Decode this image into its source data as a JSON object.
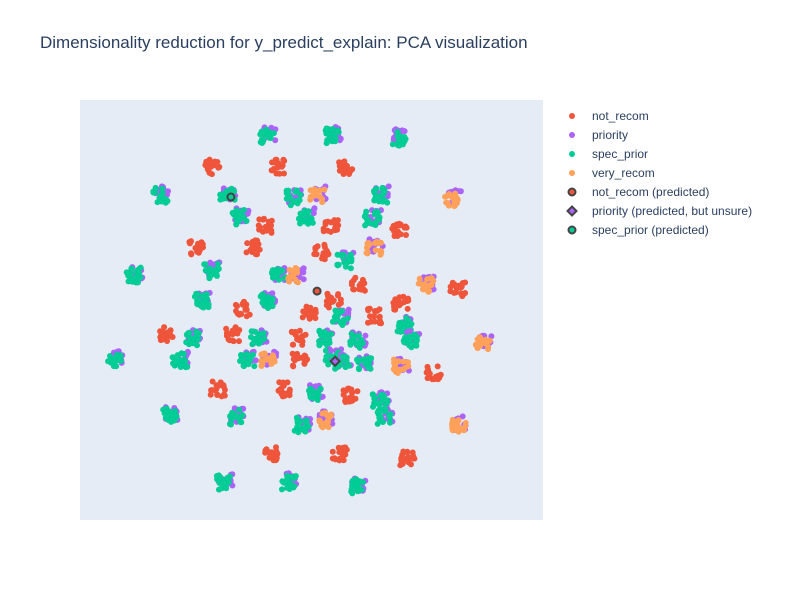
{
  "chart_data": {
    "type": "scatter",
    "title": "Dimensionality reduction for y_predict_explain: PCA visualization",
    "xlabel": "",
    "ylabel": "",
    "xlim": [
      0,
      100
    ],
    "ylim": [
      0,
      100
    ],
    "grid": false,
    "legend_position": "right",
    "axis_ticks_visible": false,
    "colors": {
      "not_recom": "#EF553B",
      "priority": "#AB63FA",
      "spec_prior": "#00CC96",
      "very_recom": "#FFA15A",
      "predicted_marker_outline": "#444444"
    },
    "clusters": [
      {
        "x": 40.4,
        "y": 91.5,
        "mix": [
          "priority",
          "spec_prior"
        ]
      },
      {
        "x": 54.6,
        "y": 91.5,
        "mix": [
          "priority",
          "spec_prior"
        ]
      },
      {
        "x": 68.8,
        "y": 90.9,
        "mix": [
          "priority",
          "spec_prior"
        ]
      },
      {
        "x": 28.6,
        "y": 84.1,
        "mix": [
          "not_recom"
        ]
      },
      {
        "x": 42.8,
        "y": 84.1,
        "mix": [
          "not_recom"
        ]
      },
      {
        "x": 57.3,
        "y": 83.9,
        "mix": [
          "not_recom"
        ]
      },
      {
        "x": 17.4,
        "y": 77.3,
        "mix": [
          "priority",
          "spec_prior"
        ]
      },
      {
        "x": 31.9,
        "y": 77.3,
        "mix": [
          "priority",
          "spec_prior"
        ]
      },
      {
        "x": 46.2,
        "y": 76.7,
        "mix": [
          "priority",
          "spec_prior"
        ]
      },
      {
        "x": 51.2,
        "y": 77.3,
        "mix": [
          "priority",
          "very_recom"
        ]
      },
      {
        "x": 64.8,
        "y": 77.3,
        "mix": [
          "priority",
          "spec_prior"
        ]
      },
      {
        "x": 80.4,
        "y": 76.4,
        "mix": [
          "priority",
          "very_recom"
        ]
      },
      {
        "x": 34.5,
        "y": 72.1,
        "mix": [
          "priority",
          "spec_prior"
        ]
      },
      {
        "x": 48.8,
        "y": 72.1,
        "mix": [
          "priority",
          "spec_prior"
        ]
      },
      {
        "x": 63.1,
        "y": 71.7,
        "mix": [
          "priority",
          "spec_prior"
        ]
      },
      {
        "x": 40.0,
        "y": 70.0,
        "mix": [
          "not_recom"
        ]
      },
      {
        "x": 54.2,
        "y": 70.0,
        "mix": [
          "not_recom"
        ]
      },
      {
        "x": 69.0,
        "y": 68.8,
        "mix": [
          "not_recom"
        ]
      },
      {
        "x": 25.0,
        "y": 64.8,
        "mix": [
          "not_recom"
        ]
      },
      {
        "x": 37.3,
        "y": 64.8,
        "mix": [
          "not_recom"
        ]
      },
      {
        "x": 52.1,
        "y": 63.8,
        "mix": [
          "not_recom"
        ]
      },
      {
        "x": 63.5,
        "y": 64.8,
        "mix": [
          "priority",
          "very_recom"
        ]
      },
      {
        "x": 28.4,
        "y": 59.2,
        "mix": [
          "priority",
          "spec_prior"
        ]
      },
      {
        "x": 42.8,
        "y": 58.3,
        "mix": [
          "priority",
          "spec_prior"
        ]
      },
      {
        "x": 46.4,
        "y": 58.3,
        "mix": [
          "priority",
          "very_recom"
        ]
      },
      {
        "x": 57.1,
        "y": 61.6,
        "mix": [
          "priority",
          "spec_prior"
        ]
      },
      {
        "x": 60.2,
        "y": 55.9,
        "mix": [
          "not_recom"
        ]
      },
      {
        "x": 74.7,
        "y": 55.9,
        "mix": [
          "priority",
          "very_recom"
        ]
      },
      {
        "x": 11.7,
        "y": 58.3,
        "mix": [
          "priority",
          "spec_prior"
        ]
      },
      {
        "x": 26.3,
        "y": 52.1,
        "mix": [
          "priority",
          "spec_prior"
        ]
      },
      {
        "x": 40.6,
        "y": 52.1,
        "mix": [
          "priority",
          "spec_prior"
        ]
      },
      {
        "x": 54.9,
        "y": 52.1,
        "mix": [
          "not_recom"
        ]
      },
      {
        "x": 69.3,
        "y": 51.5,
        "mix": [
          "not_recom"
        ]
      },
      {
        "x": 81.6,
        "y": 54.8,
        "mix": [
          "not_recom"
        ]
      },
      {
        "x": 35.1,
        "y": 50.2,
        "mix": [
          "not_recom"
        ]
      },
      {
        "x": 49.4,
        "y": 49.1,
        "mix": [
          "not_recom"
        ]
      },
      {
        "x": 63.7,
        "y": 48.6,
        "mix": [
          "not_recom"
        ]
      },
      {
        "x": 56.2,
        "y": 48.1,
        "mix": [
          "priority",
          "spec_prior"
        ]
      },
      {
        "x": 70.0,
        "y": 46.4,
        "mix": [
          "priority",
          "spec_prior"
        ]
      },
      {
        "x": 18.7,
        "y": 44.3,
        "mix": [
          "not_recom"
        ]
      },
      {
        "x": 32.9,
        "y": 44.3,
        "mix": [
          "not_recom"
        ]
      },
      {
        "x": 47.3,
        "y": 43.3,
        "mix": [
          "not_recom"
        ]
      },
      {
        "x": 24.1,
        "y": 43.3,
        "mix": [
          "priority",
          "spec_prior"
        ]
      },
      {
        "x": 38.5,
        "y": 43.3,
        "mix": [
          "priority",
          "spec_prior"
        ]
      },
      {
        "x": 52.8,
        "y": 43.3,
        "mix": [
          "priority",
          "spec_prior"
        ]
      },
      {
        "x": 59.8,
        "y": 42.6,
        "mix": [
          "priority",
          "spec_prior"
        ]
      },
      {
        "x": 71.5,
        "y": 42.9,
        "mix": [
          "priority",
          "spec_prior"
        ]
      },
      {
        "x": 87.0,
        "y": 41.9,
        "mix": [
          "priority",
          "very_recom"
        ]
      },
      {
        "x": 7.6,
        "y": 38.3,
        "mix": [
          "priority",
          "spec_prior"
        ]
      },
      {
        "x": 21.6,
        "y": 38.1,
        "mix": [
          "priority",
          "spec_prior"
        ]
      },
      {
        "x": 36.1,
        "y": 38.1,
        "mix": [
          "priority",
          "spec_prior"
        ]
      },
      {
        "x": 40.6,
        "y": 38.1,
        "mix": [
          "priority",
          "very_recom"
        ]
      },
      {
        "x": 47.5,
        "y": 38.3,
        "mix": [
          "not_recom"
        ]
      },
      {
        "x": 54.6,
        "y": 38.6,
        "mix": [
          "priority",
          "spec_prior"
        ]
      },
      {
        "x": 56.7,
        "y": 37.4,
        "mix": [
          "priority",
          "spec_prior"
        ]
      },
      {
        "x": 61.3,
        "y": 37.1,
        "mix": [
          "priority",
          "spec_prior"
        ]
      },
      {
        "x": 69.3,
        "y": 36.7,
        "mix": [
          "priority",
          "very_recom"
        ]
      },
      {
        "x": 76.4,
        "y": 34.8,
        "mix": [
          "not_recom"
        ]
      },
      {
        "x": 29.7,
        "y": 31.2,
        "mix": [
          "not_recom"
        ]
      },
      {
        "x": 44.1,
        "y": 31.2,
        "mix": [
          "not_recom"
        ]
      },
      {
        "x": 58.4,
        "y": 29.8,
        "mix": [
          "not_recom"
        ]
      },
      {
        "x": 50.7,
        "y": 30.0,
        "mix": [
          "priority",
          "spec_prior"
        ]
      },
      {
        "x": 64.8,
        "y": 28.3,
        "mix": [
          "priority",
          "spec_prior"
        ]
      },
      {
        "x": 19.3,
        "y": 24.8,
        "mix": [
          "priority",
          "spec_prior"
        ]
      },
      {
        "x": 33.5,
        "y": 24.5,
        "mix": [
          "priority",
          "spec_prior"
        ]
      },
      {
        "x": 47.8,
        "y": 22.6,
        "mix": [
          "priority",
          "spec_prior"
        ]
      },
      {
        "x": 52.8,
        "y": 23.8,
        "mix": [
          "priority",
          "very_recom"
        ]
      },
      {
        "x": 65.9,
        "y": 24.5,
        "mix": [
          "priority",
          "spec_prior"
        ]
      },
      {
        "x": 81.9,
        "y": 22.6,
        "mix": [
          "priority",
          "very_recom"
        ]
      },
      {
        "x": 41.5,
        "y": 15.7,
        "mix": [
          "not_recom"
        ]
      },
      {
        "x": 56.2,
        "y": 15.7,
        "mix": [
          "not_recom"
        ]
      },
      {
        "x": 70.7,
        "y": 14.8,
        "mix": [
          "not_recom"
        ]
      },
      {
        "x": 31.0,
        "y": 9.0,
        "mix": [
          "priority",
          "spec_prior"
        ]
      },
      {
        "x": 45.1,
        "y": 9.0,
        "mix": [
          "priority",
          "spec_prior"
        ]
      },
      {
        "x": 59.8,
        "y": 8.1,
        "mix": [
          "priority",
          "spec_prior"
        ]
      }
    ],
    "predicted_points": [
      {
        "series": "not_recom (predicted)",
        "class": "not_recom",
        "symbol": "circle",
        "x": 51.2,
        "y": 54.5
      },
      {
        "series": "priority (predicted, but unsure)",
        "class": "priority",
        "symbol": "diamond",
        "x": 55.1,
        "y": 37.8
      },
      {
        "series": "spec_prior (predicted)",
        "class": "spec_prior",
        "symbol": "circle",
        "x": 32.6,
        "y": 76.9
      }
    ]
  },
  "legend": [
    {
      "label": "not_recom",
      "color": "#EF553B",
      "symbol": "circle",
      "outlined": false
    },
    {
      "label": "priority",
      "color": "#AB63FA",
      "symbol": "circle",
      "outlined": false
    },
    {
      "label": "spec_prior",
      "color": "#00CC96",
      "symbol": "circle",
      "outlined": false
    },
    {
      "label": "very_recom",
      "color": "#FFA15A",
      "symbol": "circle",
      "outlined": false
    },
    {
      "label": "not_recom (predicted)",
      "color": "#EF553B",
      "symbol": "circle",
      "outlined": true
    },
    {
      "label": "priority (predicted, but unsure)",
      "color": "#AB63FA",
      "symbol": "diamond",
      "outlined": true
    },
    {
      "label": "spec_prior (predicted)",
      "color": "#00CC96",
      "symbol": "circle",
      "outlined": true
    }
  ]
}
